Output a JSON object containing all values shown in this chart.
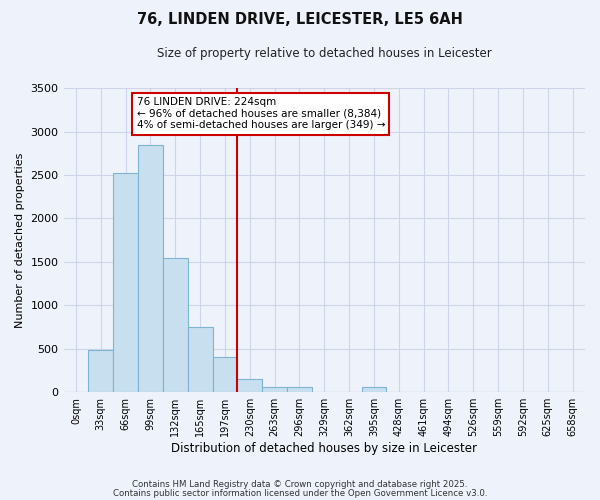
{
  "title": "76, LINDEN DRIVE, LEICESTER, LE5 6AH",
  "subtitle": "Size of property relative to detached houses in Leicester",
  "xlabel": "Distribution of detached houses by size in Leicester",
  "ylabel": "Number of detached properties",
  "bar_labels": [
    "0sqm",
    "33sqm",
    "66sqm",
    "99sqm",
    "132sqm",
    "165sqm",
    "197sqm",
    "230sqm",
    "263sqm",
    "296sqm",
    "329sqm",
    "362sqm",
    "395sqm",
    "428sqm",
    "461sqm",
    "494sqm",
    "526sqm",
    "559sqm",
    "592sqm",
    "625sqm",
    "658sqm"
  ],
  "bar_values": [
    0,
    490,
    2520,
    2840,
    1540,
    750,
    400,
    150,
    65,
    60,
    0,
    0,
    55,
    0,
    0,
    0,
    0,
    0,
    0,
    0,
    0
  ],
  "bar_color": "#c8dff0",
  "bar_edge_color": "#7fb3d3",
  "vline_x": 6.5,
  "vline_color": "#cc0000",
  "ylim": [
    0,
    3500
  ],
  "yticks": [
    0,
    500,
    1000,
    1500,
    2000,
    2500,
    3000,
    3500
  ],
  "annotation_title": "76 LINDEN DRIVE: 224sqm",
  "annotation_line1": "← 96% of detached houses are smaller (8,384)",
  "annotation_line2": "4% of semi-detached houses are larger (349) →",
  "annotation_box_facecolor": "#ffffff",
  "annotation_box_edgecolor": "#cc0000",
  "footer1": "Contains HM Land Registry data © Crown copyright and database right 2025.",
  "footer2": "Contains public sector information licensed under the Open Government Licence v3.0.",
  "bg_color": "#eef2fb",
  "grid_color": "#cdd5e8",
  "fig_width": 6.0,
  "fig_height": 5.0,
  "dpi": 100
}
